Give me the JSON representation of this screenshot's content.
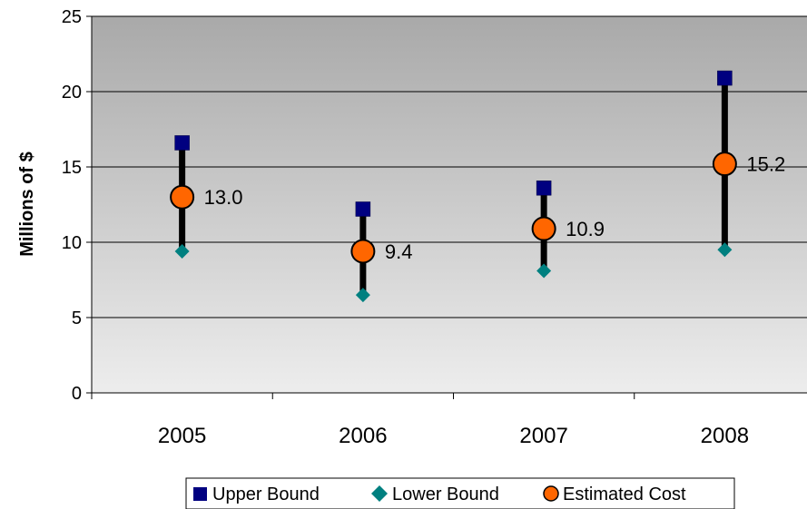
{
  "chart_data": {
    "type": "scatter",
    "categories": [
      "2005",
      "2006",
      "2007",
      "2008"
    ],
    "series": [
      {
        "name": "Upper Bound",
        "values": [
          16.6,
          12.2,
          13.6,
          20.9
        ],
        "color": "#000080",
        "marker": "square"
      },
      {
        "name": "Lower Bound",
        "values": [
          9.4,
          6.5,
          8.1,
          9.5
        ],
        "color": "#008080",
        "marker": "diamond"
      },
      {
        "name": "Estimated Cost",
        "values": [
          13.0,
          9.4,
          10.9,
          15.2
        ],
        "color": "#FF6600",
        "marker": "circle",
        "data_labels": [
          "13.0",
          "9.4",
          "10.9",
          "15.2"
        ]
      }
    ],
    "range_bars": true,
    "title": "",
    "xlabel": "",
    "ylabel": "Millions of $",
    "ylim": [
      0,
      25
    ],
    "yticks": [
      "0",
      "5",
      "10",
      "15",
      "20",
      "25"
    ],
    "grid": true,
    "legend": "bottom",
    "plot_background": "gradient gray"
  }
}
